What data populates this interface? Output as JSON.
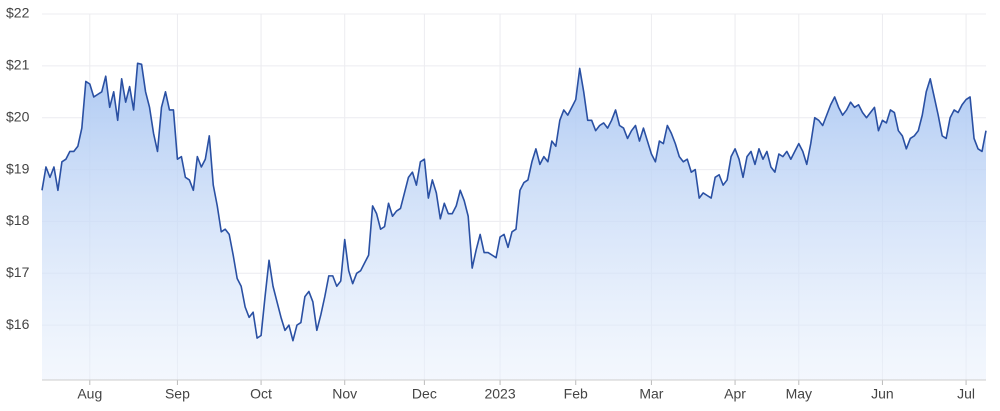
{
  "chart_data": {
    "type": "area",
    "categories": [
      null,
      null,
      null,
      null,
      null,
      null,
      null,
      null,
      null,
      null,
      null,
      null,
      "Aug",
      null,
      null,
      null,
      null,
      null,
      null,
      null,
      null,
      null,
      null,
      null,
      null,
      null,
      null,
      null,
      null,
      null,
      null,
      null,
      null,
      null,
      "Sep",
      null,
      null,
      null,
      null,
      null,
      null,
      null,
      null,
      null,
      null,
      null,
      null,
      null,
      null,
      null,
      null,
      null,
      null,
      null,
      null,
      "Oct",
      null,
      null,
      null,
      null,
      null,
      null,
      null,
      null,
      null,
      null,
      null,
      null,
      null,
      null,
      null,
      null,
      null,
      null,
      null,
      null,
      "Nov",
      null,
      null,
      null,
      null,
      null,
      null,
      null,
      null,
      null,
      null,
      null,
      null,
      null,
      null,
      null,
      null,
      null,
      null,
      null,
      "Dec",
      null,
      null,
      null,
      null,
      null,
      null,
      null,
      null,
      null,
      null,
      null,
      null,
      null,
      null,
      null,
      null,
      null,
      null,
      "2023",
      null,
      null,
      null,
      null,
      null,
      null,
      null,
      null,
      null,
      null,
      null,
      null,
      null,
      null,
      null,
      null,
      null,
      null,
      "Feb",
      null,
      null,
      null,
      null,
      null,
      null,
      null,
      null,
      null,
      null,
      null,
      null,
      null,
      null,
      null,
      null,
      null,
      null,
      "Mar",
      null,
      null,
      null,
      null,
      null,
      null,
      null,
      null,
      null,
      null,
      null,
      null,
      null,
      null,
      null,
      null,
      null,
      null,
      null,
      null,
      "Apr",
      null,
      null,
      null,
      null,
      null,
      null,
      null,
      null,
      null,
      null,
      null,
      null,
      null,
      null,
      null,
      "May",
      null,
      null,
      null,
      null,
      null,
      null,
      null,
      null,
      null,
      null,
      null,
      null,
      null,
      null,
      null,
      null,
      null,
      null,
      null,
      null,
      "Jun",
      null,
      null,
      null,
      null,
      null,
      null,
      null,
      null,
      null,
      null,
      null,
      null,
      null,
      null,
      null,
      null,
      null,
      null,
      null,
      null,
      "Jul",
      null,
      null,
      null,
      null,
      null
    ],
    "values": [
      18.6,
      19.05,
      18.85,
      19.05,
      18.6,
      19.15,
      19.2,
      19.35,
      19.35,
      19.45,
      19.8,
      20.7,
      20.65,
      20.4,
      20.45,
      20.5,
      20.8,
      20.2,
      20.5,
      19.95,
      20.75,
      20.3,
      20.6,
      20.15,
      21.05,
      21.03,
      20.5,
      20.2,
      19.7,
      19.35,
      20.2,
      20.5,
      20.15,
      20.15,
      19.2,
      19.25,
      18.85,
      18.8,
      18.6,
      19.25,
      19.05,
      19.2,
      19.65,
      18.7,
      18.3,
      17.8,
      17.85,
      17.75,
      17.35,
      16.9,
      16.75,
      16.35,
      16.15,
      16.25,
      15.75,
      15.8,
      16.55,
      17.25,
      16.75,
      16.45,
      16.15,
      15.9,
      16.0,
      15.7,
      16.0,
      16.05,
      16.55,
      16.65,
      16.45,
      15.9,
      16.2,
      16.55,
      16.95,
      16.95,
      16.75,
      16.85,
      17.65,
      17.05,
      16.8,
      17.0,
      17.05,
      17.2,
      17.35,
      18.3,
      18.15,
      17.85,
      17.9,
      18.35,
      18.1,
      18.2,
      18.25,
      18.55,
      18.85,
      18.95,
      18.7,
      19.15,
      19.2,
      18.45,
      18.8,
      18.55,
      18.05,
      18.35,
      18.15,
      18.15,
      18.3,
      18.6,
      18.4,
      18.1,
      17.1,
      17.45,
      17.75,
      17.4,
      17.4,
      17.35,
      17.3,
      17.7,
      17.75,
      17.5,
      17.8,
      17.85,
      18.6,
      18.75,
      18.8,
      19.15,
      19.4,
      19.1,
      19.25,
      19.15,
      19.55,
      19.45,
      19.95,
      20.15,
      20.05,
      20.2,
      20.35,
      20.95,
      20.5,
      19.95,
      19.95,
      19.75,
      19.85,
      19.9,
      19.8,
      19.95,
      20.15,
      19.85,
      19.8,
      19.6,
      19.75,
      19.85,
      19.55,
      19.8,
      19.55,
      19.3,
      19.15,
      19.55,
      19.5,
      19.85,
      19.7,
      19.5,
      19.25,
      19.15,
      19.2,
      18.95,
      19.0,
      18.45,
      18.55,
      18.5,
      18.45,
      18.85,
      18.9,
      18.7,
      18.8,
      19.25,
      19.4,
      19.2,
      18.85,
      19.25,
      19.35,
      19.1,
      19.4,
      19.2,
      19.35,
      19.05,
      18.95,
      19.3,
      19.25,
      19.35,
      19.2,
      19.35,
      19.5,
      19.35,
      19.1,
      19.5,
      20.0,
      19.95,
      19.85,
      20.05,
      20.25,
      20.4,
      20.2,
      20.05,
      20.15,
      20.3,
      20.2,
      20.25,
      20.1,
      20.0,
      20.1,
      20.2,
      19.75,
      19.95,
      19.9,
      20.15,
      20.1,
      19.75,
      19.65,
      19.4,
      19.6,
      19.65,
      19.75,
      20.05,
      20.5,
      20.75,
      20.4,
      20.05,
      19.65,
      19.6,
      20.0,
      20.15,
      20.1,
      20.25,
      20.35,
      20.4,
      19.6,
      19.4,
      19.35,
      19.75
    ],
    "color": "#2a50a3",
    "ylim": [
      15,
      22
    ],
    "yticks": [
      {
        "value": 16,
        "label": "$16"
      },
      {
        "value": 17,
        "label": "$17"
      },
      {
        "value": 18,
        "label": "$18"
      },
      {
        "value": 19,
        "label": "$19"
      },
      {
        "value": 20,
        "label": "$20"
      },
      {
        "value": 21,
        "label": "$21"
      },
      {
        "value": 22,
        "label": "$22"
      }
    ],
    "grid": true
  }
}
